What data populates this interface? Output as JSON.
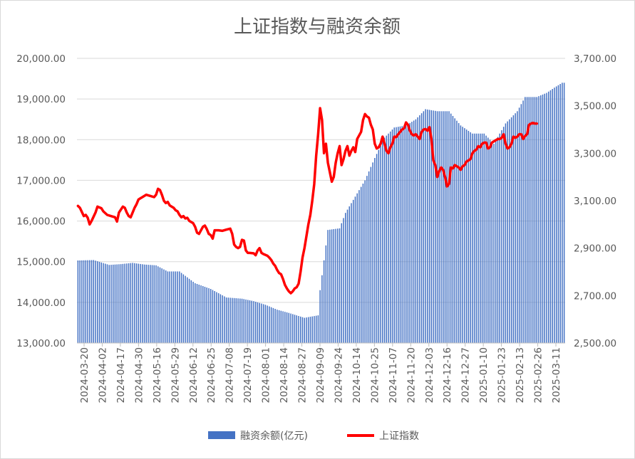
{
  "chart_data": {
    "type": "bar+line",
    "title": "上证指数与融资余额",
    "legend": {
      "position": "bottom",
      "items": [
        {
          "name": "融资余额(亿元)",
          "color": "#4472C4",
          "type": "bar"
        },
        {
          "name": "上证指数",
          "color": "#FF0000",
          "type": "line"
        }
      ]
    },
    "y_left": {
      "ylim": [
        13000,
        20000
      ],
      "ticks": [
        "13,000.00",
        "14,000.00",
        "15,000.00",
        "16,000.00",
        "17,000.00",
        "18,000.00",
        "19,000.00",
        "20,000.00"
      ]
    },
    "y_right": {
      "ylim": [
        2500,
        3700
      ],
      "ticks": [
        "2,500.00",
        "2,700.00",
        "2,900.00",
        "3,100.00",
        "3,300.00",
        "3,500.00",
        "3,700.00"
      ]
    },
    "x_tick_labels": [
      "2024-03-20",
      "2024-04-02",
      "2024-04-17",
      "2024-04-30",
      "2024-05-16",
      "2024-05-29",
      "2024-06-12",
      "2024-06-25",
      "2024-07-08",
      "2024-07-19",
      "2024-08-01",
      "2024-08-14",
      "2024-08-27",
      "2024-09-09",
      "2024-09-24",
      "2024-10-14",
      "2024-10-25",
      "2024-11-07",
      "2024-11-20",
      "2024-12-03",
      "2024-12-16",
      "2024-12-27",
      "2025-01-10",
      "2025-01-23",
      "2025-02-13",
      "2025-02-26",
      "2025-03-11"
    ],
    "grid": true,
    "margin_balance_series": {
      "name": "融资余额(亿元)",
      "points": [
        [
          0,
          15030
        ],
        [
          8,
          15040
        ],
        [
          16,
          14920
        ],
        [
          22,
          14940
        ],
        [
          28,
          14970
        ],
        [
          34,
          14930
        ],
        [
          40,
          14910
        ],
        [
          46,
          14760
        ],
        [
          52,
          14760
        ],
        [
          60,
          14470
        ],
        [
          68,
          14330
        ],
        [
          76,
          14120
        ],
        [
          84,
          14090
        ],
        [
          90,
          14030
        ],
        [
          96,
          13940
        ],
        [
          102,
          13820
        ],
        [
          108,
          13740
        ],
        [
          116,
          13620
        ],
        [
          123,
          13680
        ],
        [
          124,
          14300
        ],
        [
          127,
          15400
        ],
        [
          128,
          15780
        ],
        [
          134,
          15820
        ],
        [
          137,
          16200
        ],
        [
          142,
          16600
        ],
        [
          147,
          17000
        ],
        [
          152,
          17550
        ],
        [
          157,
          18050
        ],
        [
          162,
          18300
        ],
        [
          168,
          18350
        ],
        [
          173,
          18500
        ],
        [
          178,
          18750
        ],
        [
          184,
          18700
        ],
        [
          190,
          18700
        ],
        [
          196,
          18350
        ],
        [
          202,
          18150
        ],
        [
          208,
          18150
        ],
        [
          213,
          17900
        ],
        [
          219,
          18400
        ],
        [
          225,
          18700
        ],
        [
          229,
          19050
        ],
        [
          235,
          19050
        ],
        [
          240,
          19150
        ],
        [
          244,
          19280
        ],
        [
          248,
          19400
        ]
      ]
    },
    "sse_index_series": {
      "name": "上证指数",
      "points": [
        [
          0,
          3078
        ],
        [
          1,
          3070
        ],
        [
          3,
          3035
        ],
        [
          4,
          3040
        ],
        [
          5,
          3028
        ],
        [
          6,
          3000
        ],
        [
          7,
          3015
        ],
        [
          9,
          3050
        ],
        [
          10,
          3075
        ],
        [
          12,
          3068
        ],
        [
          13,
          3055
        ],
        [
          15,
          3040
        ],
        [
          17,
          3035
        ],
        [
          19,
          3030
        ],
        [
          20,
          3012
        ],
        [
          21,
          3050
        ],
        [
          23,
          3075
        ],
        [
          24,
          3070
        ],
        [
          25,
          3050
        ],
        [
          26,
          3035
        ],
        [
          27,
          3030
        ],
        [
          28,
          3050
        ],
        [
          29,
          3070
        ],
        [
          30,
          3085
        ],
        [
          31,
          3105
        ],
        [
          32,
          3110
        ],
        [
          33,
          3115
        ],
        [
          35,
          3125
        ],
        [
          37,
          3120
        ],
        [
          39,
          3115
        ],
        [
          40,
          3125
        ],
        [
          41,
          3150
        ],
        [
          42,
          3145
        ],
        [
          43,
          3125
        ],
        [
          44,
          3100
        ],
        [
          45,
          3090
        ],
        [
          46,
          3095
        ],
        [
          47,
          3080
        ],
        [
          48,
          3075
        ],
        [
          49,
          3070
        ],
        [
          50,
          3060
        ],
        [
          51,
          3055
        ],
        [
          52,
          3040
        ],
        [
          53,
          3030
        ],
        [
          54,
          3035
        ],
        [
          55,
          3025
        ],
        [
          56,
          3028
        ],
        [
          57,
          3015
        ],
        [
          58,
          3010
        ],
        [
          59,
          3005
        ],
        [
          60,
          2990
        ],
        [
          61,
          2965
        ],
        [
          62,
          2960
        ],
        [
          63,
          2975
        ],
        [
          64,
          2990
        ],
        [
          65,
          2995
        ],
        [
          66,
          2980
        ],
        [
          67,
          2960
        ],
        [
          68,
          2955
        ],
        [
          69,
          2940
        ],
        [
          70,
          2975
        ],
        [
          72,
          2975
        ],
        [
          74,
          2973
        ],
        [
          76,
          2978
        ],
        [
          78,
          2982
        ],
        [
          79,
          2960
        ],
        [
          80,
          2915
        ],
        [
          81,
          2905
        ],
        [
          82,
          2900
        ],
        [
          83,
          2905
        ],
        [
          84,
          2935
        ],
        [
          85,
          2932
        ],
        [
          86,
          2890
        ],
        [
          87,
          2880
        ],
        [
          88,
          2880
        ],
        [
          90,
          2878
        ],
        [
          91,
          2870
        ],
        [
          92,
          2890
        ],
        [
          93,
          2900
        ],
        [
          94,
          2880
        ],
        [
          95,
          2875
        ],
        [
          97,
          2868
        ],
        [
          98,
          2860
        ],
        [
          99,
          2850
        ],
        [
          100,
          2835
        ],
        [
          101,
          2825
        ],
        [
          102,
          2808
        ],
        [
          103,
          2795
        ],
        [
          104,
          2790
        ],
        [
          105,
          2770
        ],
        [
          106,
          2745
        ],
        [
          107,
          2730
        ],
        [
          108,
          2718
        ],
        [
          109,
          2710
        ],
        [
          110,
          2718
        ],
        [
          111,
          2730
        ],
        [
          112,
          2735
        ],
        [
          113,
          2750
        ],
        [
          114,
          2800
        ],
        [
          115,
          2860
        ],
        [
          116,
          2900
        ],
        [
          117,
          2950
        ],
        [
          118,
          3000
        ],
        [
          119,
          3040
        ],
        [
          120,
          3100
        ],
        [
          121,
          3170
        ],
        [
          122,
          3290
        ],
        [
          123,
          3380
        ],
        [
          124,
          3490
        ],
        [
          125,
          3440
        ],
        [
          126,
          3300
        ],
        [
          127,
          3340
        ],
        [
          128,
          3260
        ],
        [
          129,
          3220
        ],
        [
          130,
          3180
        ],
        [
          131,
          3200
        ],
        [
          132,
          3260
        ],
        [
          133,
          3300
        ],
        [
          134,
          3330
        ],
        [
          135,
          3250
        ],
        [
          136,
          3275
        ],
        [
          137,
          3310
        ],
        [
          138,
          3330
        ],
        [
          139,
          3290
        ],
        [
          140,
          3310
        ],
        [
          141,
          3325
        ],
        [
          142,
          3305
        ],
        [
          143,
          3360
        ],
        [
          144,
          3375
        ],
        [
          145,
          3390
        ],
        [
          146,
          3440
        ],
        [
          147,
          3465
        ],
        [
          148,
          3455
        ],
        [
          149,
          3450
        ],
        [
          150,
          3420
        ],
        [
          151,
          3400
        ],
        [
          152,
          3340
        ],
        [
          153,
          3320
        ],
        [
          154,
          3325
        ],
        [
          155,
          3340
        ],
        [
          156,
          3370
        ],
        [
          157,
          3340
        ],
        [
          158,
          3310
        ],
        [
          159,
          3300
        ],
        [
          160,
          3325
        ],
        [
          161,
          3340
        ],
        [
          162,
          3370
        ],
        [
          163,
          3368
        ],
        [
          164,
          3380
        ],
        [
          165,
          3390
        ],
        [
          166,
          3400
        ],
        [
          167,
          3405
        ],
        [
          168,
          3430
        ],
        [
          169,
          3420
        ],
        [
          170,
          3395
        ],
        [
          171,
          3380
        ],
        [
          172,
          3375
        ],
        [
          173,
          3380
        ],
        [
          174,
          3370
        ],
        [
          175,
          3360
        ],
        [
          176,
          3390
        ],
        [
          177,
          3400
        ],
        [
          178,
          3402
        ],
        [
          179,
          3395
        ],
        [
          180,
          3410
        ],
        [
          181,
          3360
        ],
        [
          182,
          3270
        ],
        [
          183,
          3250
        ],
        [
          184,
          3200
        ],
        [
          185,
          3225
        ],
        [
          186,
          3240
        ],
        [
          187,
          3230
        ],
        [
          188,
          3200
        ],
        [
          189,
          3160
        ],
        [
          190,
          3170
        ],
        [
          191,
          3240
        ],
        [
          192,
          3236
        ],
        [
          193,
          3250
        ],
        [
          194,
          3245
        ],
        [
          195,
          3240
        ],
        [
          196,
          3230
        ],
        [
          197,
          3245
        ],
        [
          198,
          3250
        ],
        [
          199,
          3265
        ],
        [
          200,
          3270
        ],
        [
          201,
          3275
        ],
        [
          202,
          3300
        ],
        [
          203,
          3310
        ],
        [
          204,
          3315
        ],
        [
          205,
          3330
        ],
        [
          206,
          3325
        ],
        [
          207,
          3340
        ],
        [
          208,
          3345
        ],
        [
          209,
          3345
        ],
        [
          210,
          3320
        ],
        [
          211,
          3325
        ],
        [
          212,
          3345
        ],
        [
          213,
          3350
        ],
        [
          214,
          3355
        ],
        [
          215,
          3360
        ],
        [
          216,
          3360
        ],
        [
          217,
          3365
        ],
        [
          218,
          3380
        ],
        [
          219,
          3340
        ],
        [
          220,
          3320
        ],
        [
          221,
          3325
        ],
        [
          222,
          3340
        ],
        [
          223,
          3370
        ],
        [
          224,
          3365
        ],
        [
          225,
          3370
        ],
        [
          226,
          3380
        ],
        [
          227,
          3380
        ],
        [
          228,
          3360
        ],
        [
          229,
          3373
        ],
        [
          230,
          3380
        ],
        [
          231,
          3420
        ],
        [
          232,
          3425
        ],
        [
          233,
          3428
        ],
        [
          234,
          3425
        ],
        [
          235,
          3425
        ]
      ]
    }
  }
}
